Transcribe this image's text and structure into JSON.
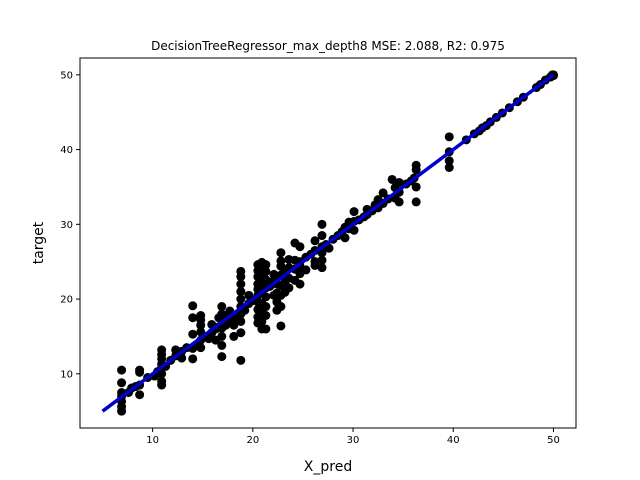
{
  "chart_data": {
    "type": "scatter",
    "title": "DecisionTreeRegressor_max_depth8 MSE: 2.088, R2: 0.975",
    "xlabel": "X_pred",
    "ylabel": "target",
    "xlim": [
      2.75,
      52.25
    ],
    "ylim": [
      2.75,
      52.25
    ],
    "xticks": [
      10,
      20,
      30,
      40,
      50
    ],
    "yticks": [
      10,
      20,
      30,
      40,
      50
    ],
    "grid": false,
    "point_color": "#000000",
    "line_color": "#0000cc",
    "fit_line": {
      "x": [
        5,
        50
      ],
      "y": [
        5,
        50
      ]
    },
    "points": [
      [
        6.9,
        5.0
      ],
      [
        6.9,
        5.6
      ],
      [
        6.9,
        6.3
      ],
      [
        6.9,
        7.0
      ],
      [
        6.9,
        7.5
      ],
      [
        6.9,
        8.8
      ],
      [
        6.9,
        10.5
      ],
      [
        7.6,
        7.5
      ],
      [
        7.9,
        8.1
      ],
      [
        8.3,
        8.3
      ],
      [
        8.7,
        7.2
      ],
      [
        8.7,
        8.5
      ],
      [
        8.7,
        10.2
      ],
      [
        8.7,
        10.5
      ],
      [
        9.5,
        9.5
      ],
      [
        10.2,
        9.7
      ],
      [
        10.5,
        10.3
      ],
      [
        10.9,
        8.5
      ],
      [
        10.9,
        9.0
      ],
      [
        10.9,
        10.0
      ],
      [
        10.9,
        10.8
      ],
      [
        10.9,
        11.3
      ],
      [
        10.9,
        12.0
      ],
      [
        10.9,
        12.6
      ],
      [
        10.9,
        13.2
      ],
      [
        11.3,
        11.0
      ],
      [
        11.8,
        11.8
      ],
      [
        12.3,
        12.4
      ],
      [
        12.3,
        13.2
      ],
      [
        12.9,
        12.1
      ],
      [
        12.9,
        13.0
      ],
      [
        13.4,
        13.5
      ],
      [
        14.0,
        12.0
      ],
      [
        14.0,
        13.4
      ],
      [
        14.0,
        15.3
      ],
      [
        14.0,
        17.5
      ],
      [
        14.0,
        19.1
      ],
      [
        14.4,
        13.8
      ],
      [
        14.8,
        13.5
      ],
      [
        14.8,
        14.5
      ],
      [
        14.8,
        15.6
      ],
      [
        14.8,
        16.5
      ],
      [
        14.8,
        17.2
      ],
      [
        14.8,
        17.8
      ],
      [
        15.2,
        15.0
      ],
      [
        15.6,
        14.7
      ],
      [
        15.9,
        15.5
      ],
      [
        15.9,
        16.6
      ],
      [
        16.3,
        14.5
      ],
      [
        16.3,
        16.0
      ],
      [
        16.6,
        16.3
      ],
      [
        16.6,
        17.5
      ],
      [
        16.9,
        12.3
      ],
      [
        16.9,
        13.8
      ],
      [
        16.9,
        15.0
      ],
      [
        16.9,
        16.1
      ],
      [
        16.9,
        17.2
      ],
      [
        16.9,
        18.0
      ],
      [
        16.9,
        19.0
      ],
      [
        17.3,
        16.5
      ],
      [
        17.3,
        17.7
      ],
      [
        17.7,
        17.0
      ],
      [
        17.7,
        18.4
      ],
      [
        18.1,
        15.0
      ],
      [
        18.1,
        16.5
      ],
      [
        18.1,
        17.5
      ],
      [
        18.8,
        11.8
      ],
      [
        18.8,
        15.5
      ],
      [
        18.8,
        17.0
      ],
      [
        18.8,
        18.0
      ],
      [
        18.8,
        19.0
      ],
      [
        18.8,
        20.0
      ],
      [
        18.8,
        21.0
      ],
      [
        18.8,
        22.0
      ],
      [
        18.8,
        23.0
      ],
      [
        18.8,
        23.7
      ],
      [
        19.2,
        18.5
      ],
      [
        19.6,
        19.4
      ],
      [
        19.6,
        20.5
      ],
      [
        20.0,
        19.8
      ],
      [
        20.5,
        16.8
      ],
      [
        20.5,
        17.6
      ],
      [
        20.5,
        18.6
      ],
      [
        20.5,
        19.6
      ],
      [
        20.5,
        20.5
      ],
      [
        20.5,
        21.3
      ],
      [
        20.5,
        22.0
      ],
      [
        20.5,
        23.0
      ],
      [
        20.5,
        23.8
      ],
      [
        20.5,
        24.6
      ],
      [
        20.9,
        16.0
      ],
      [
        20.9,
        17.0
      ],
      [
        20.9,
        18.2
      ],
      [
        20.9,
        19.4
      ],
      [
        20.9,
        20.8
      ],
      [
        20.9,
        21.8
      ],
      [
        20.9,
        22.9
      ],
      [
        20.9,
        24.0
      ],
      [
        20.9,
        24.9
      ],
      [
        21.3,
        16.0
      ],
      [
        21.3,
        17.8
      ],
      [
        21.3,
        19.0
      ],
      [
        21.3,
        20.3
      ],
      [
        21.3,
        21.5
      ],
      [
        21.3,
        22.6
      ],
      [
        21.3,
        23.7
      ],
      [
        21.3,
        24.6
      ],
      [
        21.7,
        21.7
      ],
      [
        22.1,
        20.5
      ],
      [
        22.1,
        22.5
      ],
      [
        22.1,
        23.3
      ],
      [
        22.4,
        18.5
      ],
      [
        22.4,
        19.6
      ],
      [
        22.4,
        20.8
      ],
      [
        22.4,
        22.0
      ],
      [
        22.4,
        23.0
      ],
      [
        22.8,
        16.4
      ],
      [
        22.8,
        19.0
      ],
      [
        22.8,
        20.5
      ],
      [
        22.8,
        21.8
      ],
      [
        22.8,
        23.2
      ],
      [
        22.8,
        24.4
      ],
      [
        22.8,
        25.1
      ],
      [
        22.8,
        26.2
      ],
      [
        23.2,
        20.9
      ],
      [
        23.2,
        22.2
      ],
      [
        23.2,
        23.8
      ],
      [
        23.6,
        21.5
      ],
      [
        23.6,
        22.8
      ],
      [
        23.6,
        24.2
      ],
      [
        23.6,
        25.3
      ],
      [
        24.2,
        22.5
      ],
      [
        24.2,
        24.0
      ],
      [
        24.2,
        25.2
      ],
      [
        24.2,
        27.5
      ],
      [
        24.7,
        22.0
      ],
      [
        24.7,
        23.4
      ],
      [
        24.7,
        24.4
      ],
      [
        24.7,
        25.0
      ],
      [
        24.7,
        27.0
      ],
      [
        25.3,
        23.9
      ],
      [
        25.3,
        25.6
      ],
      [
        25.8,
        26.0
      ],
      [
        26.2,
        24.5
      ],
      [
        26.2,
        25.0
      ],
      [
        26.2,
        26.5
      ],
      [
        26.2,
        27.8
      ],
      [
        26.9,
        24.2
      ],
      [
        26.9,
        25.2
      ],
      [
        26.9,
        26.2
      ],
      [
        26.9,
        27.0
      ],
      [
        26.9,
        28.5
      ],
      [
        26.9,
        30.0
      ],
      [
        27.3,
        27.3
      ],
      [
        27.6,
        26.8
      ],
      [
        28.0,
        28.0
      ],
      [
        28.5,
        28.5
      ],
      [
        28.9,
        29.0
      ],
      [
        29.2,
        28.2
      ],
      [
        29.2,
        29.6
      ],
      [
        29.6,
        29.4
      ],
      [
        29.6,
        30.3
      ],
      [
        30.1,
        29.2
      ],
      [
        30.1,
        30.4
      ],
      [
        30.1,
        31.7
      ],
      [
        30.6,
        30.6
      ],
      [
        31.1,
        31.0
      ],
      [
        31.4,
        31.3
      ],
      [
        31.4,
        32.0
      ],
      [
        31.9,
        31.8
      ],
      [
        32.2,
        32.6
      ],
      [
        32.5,
        32.2
      ],
      [
        32.5,
        33.3
      ],
      [
        33.0,
        32.8
      ],
      [
        33.0,
        34.2
      ],
      [
        33.5,
        33.4
      ],
      [
        33.9,
        36.0
      ],
      [
        34.2,
        33.5
      ],
      [
        34.2,
        34.9
      ],
      [
        34.6,
        33.0
      ],
      [
        34.6,
        34.3
      ],
      [
        34.6,
        35.6
      ],
      [
        35.3,
        35.4
      ],
      [
        35.8,
        35.8
      ],
      [
        36.1,
        36.2
      ],
      [
        36.3,
        33.0
      ],
      [
        36.3,
        35.0
      ],
      [
        36.3,
        37.3
      ],
      [
        36.3,
        37.9
      ],
      [
        39.6,
        37.6
      ],
      [
        39.6,
        38.5
      ],
      [
        39.6,
        39.7
      ],
      [
        39.6,
        41.7
      ],
      [
        41.3,
        41.3
      ],
      [
        42.1,
        42.1
      ],
      [
        42.6,
        42.5
      ],
      [
        42.9,
        42.9
      ],
      [
        43.3,
        43.2
      ],
      [
        43.7,
        43.7
      ],
      [
        44.3,
        44.3
      ],
      [
        44.9,
        44.9
      ],
      [
        45.6,
        45.6
      ],
      [
        46.4,
        46.4
      ],
      [
        47.0,
        47.0
      ],
      [
        48.3,
        48.3
      ],
      [
        48.7,
        48.7
      ],
      [
        49.2,
        49.3
      ],
      [
        49.7,
        49.7
      ],
      [
        49.9,
        50.0
      ],
      [
        50.0,
        50.0
      ],
      [
        50.0,
        49.9
      ]
    ]
  }
}
